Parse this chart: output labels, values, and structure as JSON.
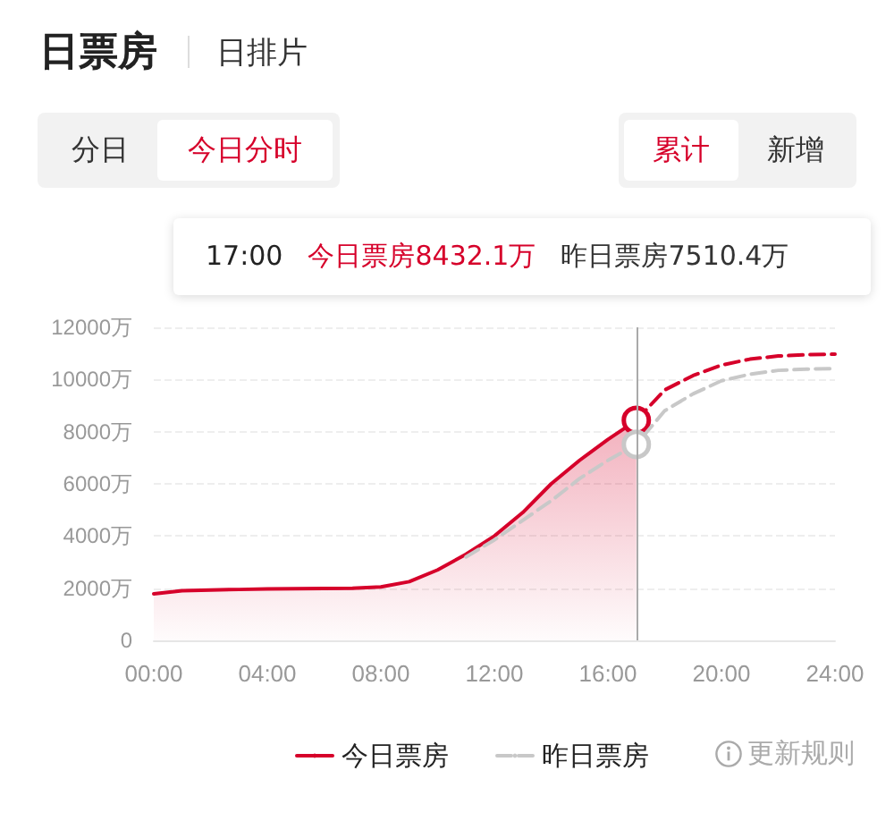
{
  "chart_data": {
    "type": "line",
    "title": "日票房",
    "annotations": [
      "日排片",
      "分日",
      "今日分时",
      "累计",
      "新增",
      "17:00",
      "今日票房8432.1万",
      "昨日票房7510.4万",
      "更新规则"
    ],
    "xlim": [
      0,
      24
    ],
    "xticks": [
      {
        "value": 0,
        "label": "00:00"
      },
      {
        "value": 4,
        "label": "04:00"
      },
      {
        "value": 8,
        "label": "08:00"
      },
      {
        "value": 12,
        "label": "12:00"
      },
      {
        "value": 16,
        "label": "16:00"
      },
      {
        "value": 20,
        "label": "20:00"
      },
      {
        "value": 24,
        "label": "24:00"
      }
    ],
    "ylim": [
      0,
      12000
    ],
    "yticks": [
      0,
      {
        "value": 2000,
        "label": "2000万"
      },
      {
        "value": 4000,
        "label": "4000万"
      },
      {
        "value": 6000,
        "label": "6000万"
      },
      {
        "value": 8000,
        "label": "8000万"
      },
      {
        "value": 10000,
        "label": "10000万"
      },
      {
        "value": 12000,
        "label": "12000万"
      }
    ],
    "grid": "y",
    "legend": "bottom",
    "marker": "none",
    "ref_lines": [
      {
        "axis": "x",
        "value": 17,
        "color": "#aaaaaa"
      }
    ],
    "series": [
      {
        "name": "今日票房",
        "type": "area",
        "color": "#d6002a",
        "line_style": "solid",
        "x": [
          0,
          1,
          2,
          3,
          4,
          5,
          6,
          7,
          8,
          9,
          10,
          11,
          12,
          13,
          14,
          15,
          16,
          17
        ],
        "values": [
          1780,
          1900,
          1930,
          1950,
          1970,
          1980,
          1990,
          2000,
          2050,
          2250,
          2700,
          3300,
          4000,
          4900,
          6000,
          6900,
          7700,
          8432.1
        ]
      },
      {
        "name": "昨日票房",
        "color": "#c8c8c8",
        "line_style": "dashed",
        "x": [
          11,
          12,
          13,
          14,
          15,
          16,
          17,
          18,
          19,
          20,
          21,
          22,
          23,
          24
        ],
        "values": [
          3200,
          3850,
          4600,
          5350,
          6200,
          6900,
          7510.4,
          8800,
          9450,
          9950,
          10200,
          10350,
          10400,
          10420
        ]
      },
      {
        "color": "#d6002a",
        "line_style": "dashed",
        "x": [
          17,
          18,
          19,
          20,
          21,
          22,
          23,
          24
        ],
        "values": [
          8432.1,
          9600,
          10150,
          10550,
          10780,
          10900,
          10950,
          10970
        ]
      }
    ]
  }
}
